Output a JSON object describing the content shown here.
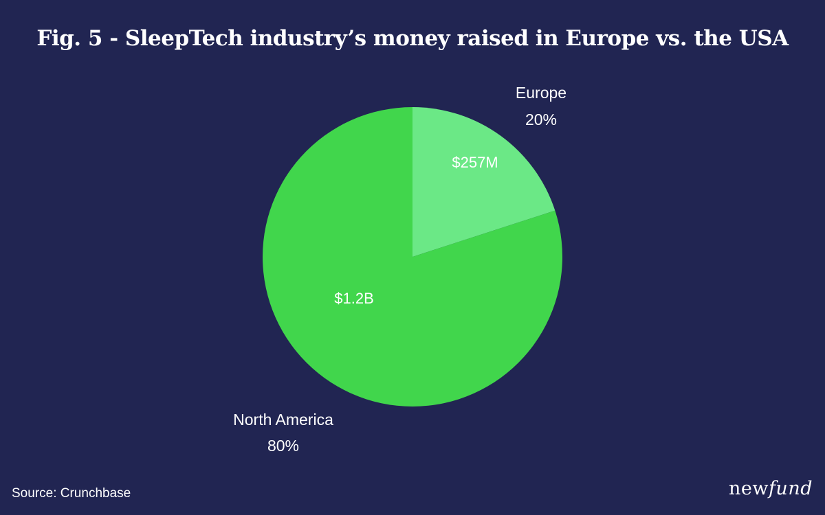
{
  "title": "Fig. 5 - SleepTech industry’s money raised in Europe vs. the USA",
  "source": "Source: Crunchbase",
  "brand": {
    "prefix": "new",
    "suffix": "fund"
  },
  "colors": {
    "background": "#212552",
    "europe": "#6be886",
    "north_america": "#41d64c",
    "text": "#ffffff"
  },
  "chart_data": {
    "type": "pie",
    "title": "Fig. 5 - SleepTech industry’s money raised in Europe vs. the USA",
    "slices": [
      {
        "name": "Europe",
        "percent": 20,
        "percent_label": "20%",
        "value_label": "$257M",
        "color": "#6be886"
      },
      {
        "name": "North America",
        "percent": 80,
        "percent_label": "80%",
        "value_label": "$1.2B",
        "color": "#41d64c"
      }
    ]
  }
}
